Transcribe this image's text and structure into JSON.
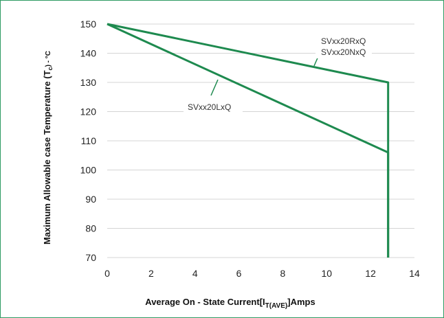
{
  "chart_data": {
    "type": "line",
    "title": "",
    "xlabel": {
      "prefix": "Average On - State Current[I",
      "sub": "T(AVE)",
      "suffix": "]Amps"
    },
    "ylabel": {
      "prefix": "Maximum Allowable case Temperature  (T",
      "sub": "c",
      "suffix": ") - °C"
    },
    "xlim": [
      0,
      14
    ],
    "ylim": [
      70,
      150
    ],
    "xticks": [
      "0",
      "2",
      "4",
      "6",
      "8",
      "10",
      "12",
      "14"
    ],
    "yticks": [
      "70",
      "80",
      "90",
      "100",
      "110",
      "120",
      "130",
      "140",
      "150"
    ],
    "grid": "horizontal",
    "line_color": "#1e8a4f",
    "series": [
      {
        "name": "SVxx20RxQ / SVxx20NxQ",
        "points": [
          [
            0,
            150
          ],
          [
            12.8,
            130
          ],
          [
            12.8,
            70
          ]
        ]
      },
      {
        "name": "SVxx20LxQ",
        "points": [
          [
            0,
            150
          ],
          [
            12.8,
            106
          ],
          [
            12.8,
            70
          ]
        ]
      }
    ],
    "annotations": [
      {
        "lines": [
          "SVxx20RxQ",
          "SVxx20NxQ"
        ]
      },
      {
        "lines": [
          "SVxx20LxQ"
        ]
      }
    ]
  }
}
